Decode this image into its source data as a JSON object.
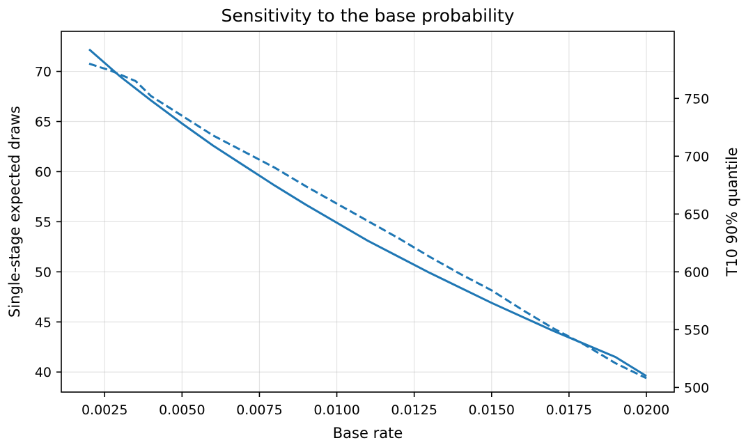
{
  "chart_data": {
    "type": "line",
    "title": "Sensitivity to the base probability",
    "xlabel": "Base rate",
    "ylabel": "Single-stage expected draws",
    "y2label": "T10 90% quantile",
    "xlim": [
      0.0011,
      0.0209
    ],
    "ylim": [
      38.0,
      74.0
    ],
    "y2lim": [
      496.0,
      808.0
    ],
    "x_ticks": [
      0.0025,
      0.005,
      0.0075,
      0.01,
      0.0125,
      0.015,
      0.0175,
      0.02
    ],
    "x_tick_labels": [
      "0.0025",
      "0.0050",
      "0.0075",
      "0.0100",
      "0.0125",
      "0.0150",
      "0.0175",
      "0.0200"
    ],
    "y_ticks": [
      40,
      45,
      50,
      55,
      60,
      65,
      70
    ],
    "y_tick_labels": [
      "40",
      "45",
      "50",
      "55",
      "60",
      "65",
      "70"
    ],
    "y2_ticks": [
      500,
      550,
      600,
      650,
      700,
      750
    ],
    "y2_tick_labels": [
      "500",
      "550",
      "600",
      "650",
      "700",
      "750"
    ],
    "grid": true,
    "color": "#1f77b4",
    "series": [
      {
        "axis": "left",
        "style": "solid",
        "x": [
          0.002,
          0.003,
          0.004,
          0.005,
          0.006,
          0.007,
          0.008,
          0.009,
          0.01,
          0.011,
          0.012,
          0.013,
          0.014,
          0.015,
          0.016,
          0.017,
          0.018,
          0.019,
          0.02
        ],
        "values": [
          72.2,
          69.5,
          67.1,
          64.8,
          62.6,
          60.6,
          58.6,
          56.7,
          54.9,
          53.1,
          51.5,
          49.9,
          48.4,
          46.9,
          45.5,
          44.1,
          42.8,
          41.5,
          39.6
        ]
      },
      {
        "axis": "right",
        "style": "dashed",
        "x": [
          0.002,
          0.0027,
          0.0035,
          0.004,
          0.005,
          0.006,
          0.007,
          0.008,
          0.009,
          0.01,
          0.011,
          0.012,
          0.013,
          0.014,
          0.015,
          0.016,
          0.017,
          0.018,
          0.019,
          0.02
        ],
        "values": [
          780,
          774,
          765,
          752,
          735,
          718,
          704,
          690,
          674,
          659,
          644,
          629,
          613,
          598,
          584,
          567,
          551,
          537,
          521,
          508
        ]
      }
    ]
  }
}
